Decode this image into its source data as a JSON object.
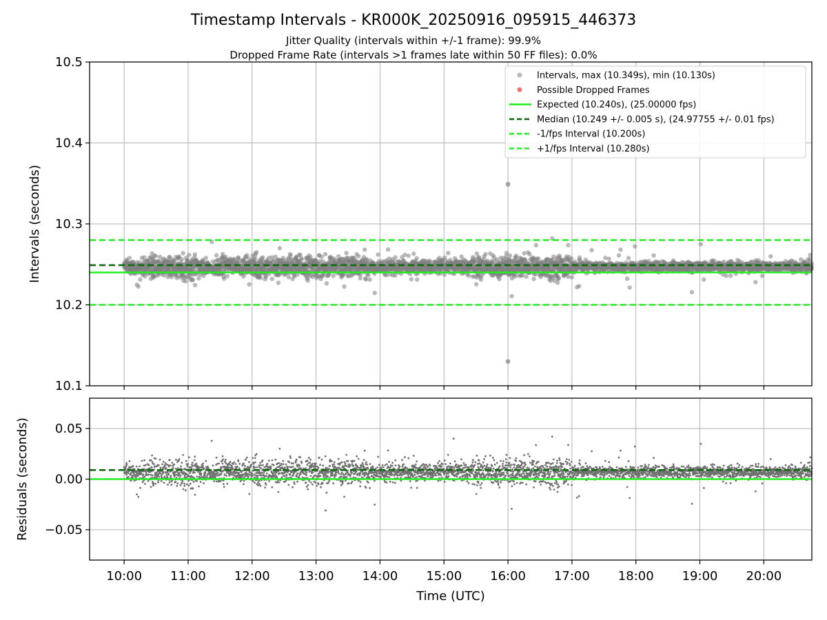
{
  "chart_data": [
    {
      "type": "scatter",
      "panel": "intervals",
      "title": "Timestamp Intervals - KR000K_20250916_095915_446373",
      "subtitle_lines": [
        "Jitter Quality (intervals within +/-1 frame): 99.9%",
        "Dropped Frame Rate (intervals >1 frames late within 50 FF files): 0.0%"
      ],
      "ylabel": "Intervals (seconds)",
      "ylim": [
        10.1,
        10.5
      ],
      "yticks": [
        "10.1",
        "10.2",
        "10.3",
        "10.4",
        "10.5"
      ],
      "xlim_hours": [
        9.46,
        20.75
      ],
      "grid": true,
      "legend_position": "top-right",
      "point_count": 3860,
      "max_point": {
        "time": "16:00",
        "value": 10.349
      },
      "min_point": {
        "time": "16:00",
        "value": 10.13
      },
      "series": [
        {
          "name": "Intervals, max (10.349s), min (10.130s)",
          "kind": "scatter",
          "color": "#808080"
        },
        {
          "name": "Possible Dropped Frames",
          "kind": "scatter",
          "color": "#f06060"
        },
        {
          "name": "Expected (10.240s), (25.00000 fps)",
          "kind": "hline",
          "value": 10.24,
          "color": "#22ee22",
          "dash": "solid"
        },
        {
          "name": "Median (10.249 +/- 0.005 s), (24.97755 +/- 0.01 fps)",
          "kind": "hline",
          "value": 10.249,
          "color": "#0d6b0d",
          "dash": "dashed"
        },
        {
          "name": "-1/fps Interval (10.200s)",
          "kind": "hline",
          "value": 10.2,
          "color": "#22ee22",
          "dash": "dashed"
        },
        {
          "name": "+1/fps Interval (10.280s)",
          "kind": "hline",
          "value": 10.28,
          "color": "#22ee22",
          "dash": "dashed"
        }
      ]
    },
    {
      "type": "scatter",
      "panel": "residuals",
      "ylabel": "Residuals (seconds)",
      "xlabel": "Time (UTC)",
      "ylim": [
        -0.08,
        0.08
      ],
      "yticks": [
        "−0.05",
        "0.00",
        "0.05"
      ],
      "yticks_values": [
        -0.05,
        0.0,
        0.05
      ],
      "xticks": [
        "10:00",
        "11:00",
        "12:00",
        "13:00",
        "14:00",
        "15:00",
        "16:00",
        "17:00",
        "18:00",
        "19:00",
        "20:00"
      ],
      "xticks_hours": [
        10,
        11,
        12,
        13,
        14,
        15,
        16,
        17,
        18,
        19,
        20
      ],
      "grid": true,
      "max_residual": 0.04,
      "min_residual": -0.031,
      "series": [
        {
          "kind": "scatter",
          "color": "#707070"
        },
        {
          "kind": "hline",
          "value": 0.0,
          "color": "#22ee22",
          "dash": "solid"
        },
        {
          "kind": "hline",
          "value": 0.009,
          "color": "#0d6b0d",
          "dash": "dashed"
        }
      ]
    }
  ]
}
